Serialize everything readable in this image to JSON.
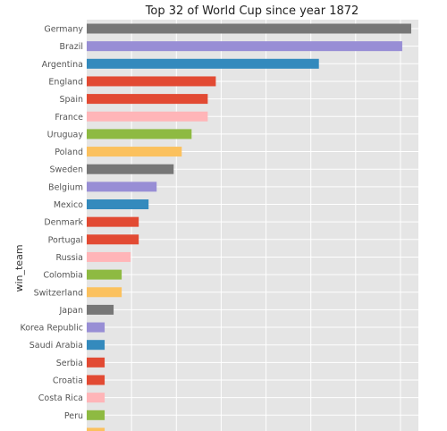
{
  "chart_data": {
    "type": "bar",
    "orientation": "horizontal",
    "title": "Top 32 of World Cup since year 1872",
    "xlabel": "",
    "ylabel": "win_team",
    "grid": true,
    "xlim": [
      0,
      370
    ],
    "categories": [
      "Germany",
      "Brazil",
      "Argentina",
      "England",
      "Spain",
      "France",
      "Uruguay",
      "Poland",
      "Sweden",
      "Belgium",
      "Mexico",
      "Denmark",
      "Portugal",
      "Russia",
      "Colombia",
      "Switzerland",
      "Japan",
      "Korea Republic",
      "Saudi Arabia",
      "Serbia",
      "Croatia",
      "Costa Rica",
      "Peru",
      ""
    ],
    "values": [
      362,
      352,
      259,
      144,
      135,
      135,
      117,
      106,
      97,
      78,
      69,
      58,
      58,
      49,
      39,
      39,
      30,
      20,
      20,
      20,
      20,
      20,
      20,
      20
    ],
    "colors": [
      "#777777",
      "#988ED5",
      "#348ABD",
      "#E24A33",
      "#E24A33",
      "#FFB5B8",
      "#8EBA42",
      "#FBC15E",
      "#777777",
      "#988ED5",
      "#348ABD",
      "#E24A33",
      "#E24A33",
      "#FFB5B8",
      "#8EBA42",
      "#FBC15E",
      "#777777",
      "#988ED5",
      "#348ABD",
      "#E24A33",
      "#E24A33",
      "#FFB5B8",
      "#8EBA42",
      "#FBC15E"
    ],
    "plot_background": "#E5E5E5",
    "grid_color": "#FFFFFF"
  }
}
